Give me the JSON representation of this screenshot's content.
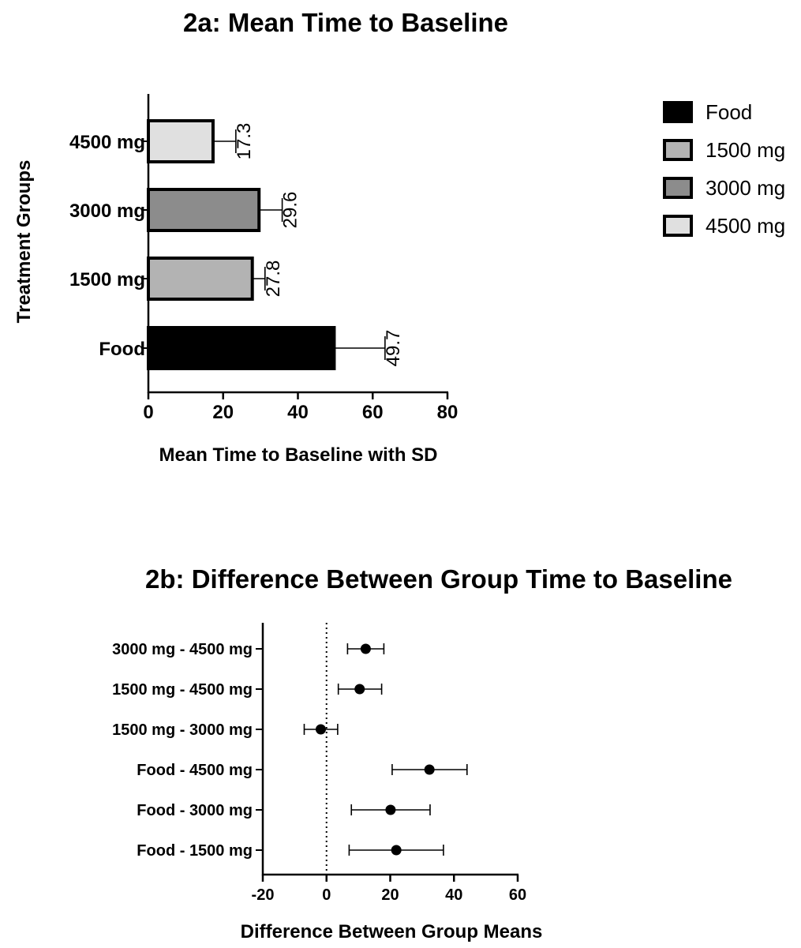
{
  "chart_data": [
    {
      "type": "bar",
      "orientation": "horizontal",
      "title": "2a: Mean Time to Baseline",
      "xlabel": "Mean Time to Baseline with SD",
      "ylabel": "Treatment Groups",
      "categories": [
        "Food",
        "1500 mg",
        "3000 mg",
        "4500 mg"
      ],
      "values": [
        49.7,
        27.8,
        29.6,
        17.3
      ],
      "sd": [
        13.6,
        3.4,
        6.2,
        6.1
      ],
      "value_labels": [
        "49.7",
        "27.8",
        "29.6",
        "17.3"
      ],
      "colors": [
        "#000000",
        "#b3b3b3",
        "#8c8c8c",
        "#e0e0e0"
      ],
      "xlim": [
        0,
        80
      ],
      "xticks": [
        "0",
        "20",
        "40",
        "60",
        "80"
      ],
      "grid": false,
      "legend": {
        "position": "top-right",
        "entries": [
          {
            "label": "Food",
            "color": "#000000"
          },
          {
            "label": "1500 mg",
            "color": "#b3b3b3"
          },
          {
            "label": "3000 mg",
            "color": "#8c8c8c"
          },
          {
            "label": "4500 mg",
            "color": "#e0e0e0"
          }
        ]
      }
    },
    {
      "type": "scatter",
      "subtype": "forest",
      "title": "2b: Difference Between Group Time to Baseline",
      "xlabel": "Difference Between Group Means",
      "ylabel": "",
      "categories": [
        "3000 mg - 4500 mg",
        "1500 mg - 4500 mg",
        "1500 mg - 3000 mg",
        "Food - 4500 mg",
        "Food - 3000 mg",
        "Food - 1500 mg"
      ],
      "values": [
        12.3,
        10.4,
        -1.8,
        32.3,
        20.1,
        21.9
      ],
      "ci_low": [
        6.6,
        3.7,
        -7.0,
        20.6,
        7.8,
        7.1
      ],
      "ci_high": [
        18.0,
        17.3,
        3.5,
        44.1,
        32.5,
        36.7
      ],
      "xlim": [
        -20,
        60
      ],
      "xticks": [
        "-20",
        "0",
        "20",
        "40",
        "60"
      ],
      "reference_line": 0,
      "grid": false
    }
  ]
}
